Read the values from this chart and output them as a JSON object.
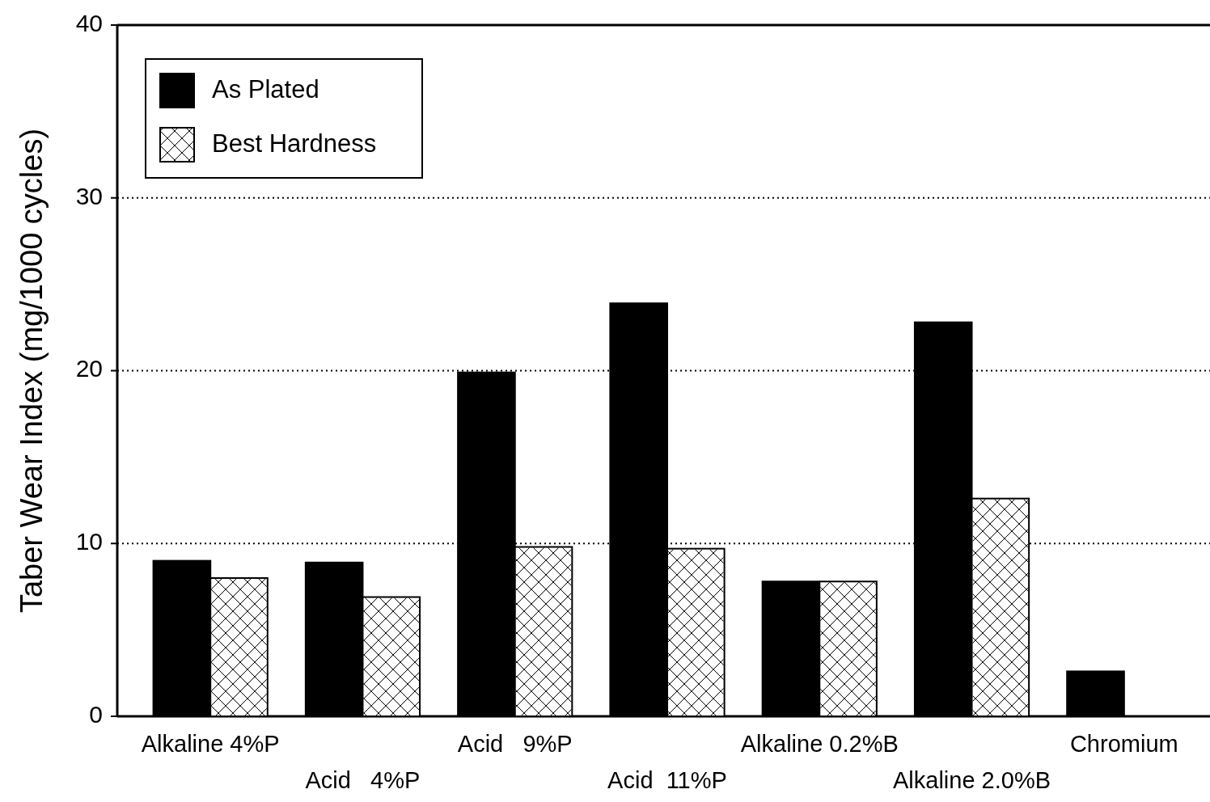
{
  "chart_data": {
    "type": "bar",
    "ylabel": "Taber Wear Index (mg/1000 cycles)",
    "categories": [
      "Alkaline 4%P",
      "Acid   4%P",
      "Acid   9%P",
      "Acid  11%P",
      "Alkaline 0.2%B",
      "Alkaline 2.0%B",
      "Chromium"
    ],
    "series": [
      {
        "name": "As Plated",
        "color": "#000000",
        "values": [
          9,
          8.9,
          19.9,
          23.9,
          7.8,
          22.8,
          2.6
        ]
      },
      {
        "name": "Best Hardness",
        "color": "#ffffff",
        "values": [
          8,
          6.9,
          9.8,
          9.7,
          7.8,
          12.6,
          null
        ]
      }
    ],
    "ylim": [
      0,
      40
    ],
    "yticks": [
      0,
      10,
      20,
      30,
      40
    ],
    "grid": "y",
    "legend": "top left"
  }
}
